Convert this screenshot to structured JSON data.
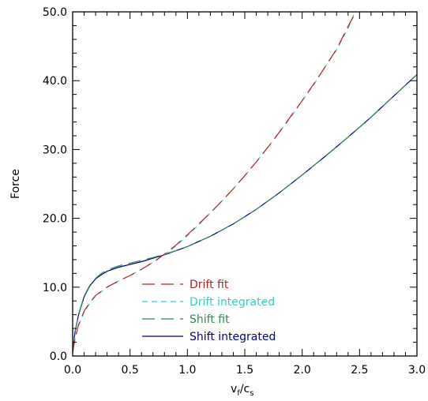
{
  "chart_data": {
    "type": "line",
    "xlabel": "v",
    "xlabel_sub1": "f",
    "xlabel_mid": "/c",
    "xlabel_sub2": "s",
    "ylabel": "Force",
    "xlim": [
      0.0,
      3.0
    ],
    "ylim": [
      0.0,
      50.0
    ],
    "grid": false,
    "legend_position": "lower-center",
    "x_ticks": [
      "0.0",
      "0.5",
      "1.0",
      "1.5",
      "2.0",
      "2.5",
      "3.0"
    ],
    "y_ticks": [
      "0.0",
      "10.0",
      "20.0",
      "30.0",
      "40.0",
      "50.0"
    ],
    "series": [
      {
        "name": "Drift fit",
        "color": "#b22222",
        "dash": "16,8",
        "width": 1.2,
        "x": [
          0.0,
          0.02,
          0.05,
          0.1,
          0.15,
          0.2,
          0.3,
          0.4,
          0.5,
          0.6,
          0.7,
          0.8,
          0.9,
          1.0,
          1.1,
          1.2,
          1.3,
          1.4,
          1.5,
          1.6,
          1.7,
          1.8,
          1.9,
          2.0,
          2.1,
          2.2,
          2.3,
          2.4,
          2.47
        ],
        "values": [
          0.5,
          2.5,
          4.5,
          6.5,
          7.8,
          8.8,
          10.0,
          10.9,
          11.7,
          12.6,
          13.6,
          14.8,
          16.1,
          17.6,
          19.2,
          20.8,
          22.5,
          24.3,
          26.2,
          28.2,
          30.3,
          32.5,
          34.8,
          37.1,
          39.5,
          42.0,
          44.6,
          47.9,
          50.0
        ]
      },
      {
        "name": "Drift integrated",
        "color": "#40c8c8",
        "dash": "7,5",
        "width": 1.2,
        "x": [
          0.0,
          0.02,
          0.05,
          0.1,
          0.15,
          0.2,
          0.3,
          0.4,
          0.5,
          0.6,
          0.7,
          0.8,
          0.9,
          1.0,
          1.1,
          1.2,
          1.3,
          1.4,
          1.5,
          1.6,
          1.7,
          1.8,
          1.9,
          2.0,
          2.1,
          2.2,
          2.3,
          2.4,
          2.46
        ],
        "values": [
          0.4,
          2.4,
          4.4,
          6.4,
          7.7,
          8.7,
          10.0,
          10.9,
          11.7,
          12.6,
          13.6,
          14.7,
          16.0,
          17.5,
          19.1,
          20.8,
          22.5,
          24.3,
          26.2,
          28.2,
          30.3,
          32.5,
          34.7,
          37.1,
          39.4,
          42.0,
          44.5,
          47.6,
          50.0
        ]
      },
      {
        "name": "Shift fit",
        "color": "#2e8b57",
        "dash": "16,8",
        "width": 1.2,
        "x": [
          0.0,
          0.02,
          0.05,
          0.1,
          0.15,
          0.2,
          0.25,
          0.3,
          0.4,
          0.5,
          0.6,
          0.7,
          0.8,
          0.9,
          1.0,
          1.2,
          1.4,
          1.6,
          1.8,
          2.0,
          2.2,
          2.4,
          2.6,
          2.8,
          3.0
        ],
        "values": [
          0.8,
          3.5,
          6.0,
          8.7,
          10.3,
          11.3,
          12.0,
          12.5,
          13.1,
          13.5,
          13.9,
          14.3,
          14.8,
          15.3,
          15.9,
          17.4,
          19.2,
          21.3,
          23.7,
          26.3,
          29.0,
          31.8,
          34.7,
          37.8,
          40.9
        ]
      },
      {
        "name": "Shift integrated",
        "color": "#000080",
        "dash": "",
        "width": 1.2,
        "x": [
          0.0,
          0.02,
          0.05,
          0.1,
          0.15,
          0.2,
          0.25,
          0.3,
          0.4,
          0.5,
          0.6,
          0.7,
          0.8,
          0.9,
          1.0,
          1.2,
          1.4,
          1.6,
          1.8,
          2.0,
          2.2,
          2.4,
          2.6,
          2.8,
          3.0
        ],
        "values": [
          0.8,
          3.4,
          5.9,
          8.6,
          10.2,
          11.2,
          11.8,
          12.3,
          12.9,
          13.3,
          13.7,
          14.2,
          14.7,
          15.3,
          15.9,
          17.4,
          19.2,
          21.3,
          23.7,
          26.3,
          29.0,
          31.8,
          34.7,
          37.8,
          40.9
        ]
      }
    ]
  }
}
